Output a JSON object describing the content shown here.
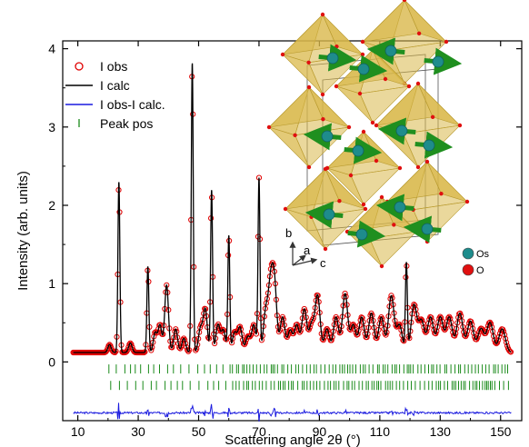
{
  "chart_data": {
    "type": "line",
    "xlabel": "Scattering angle 2θ (°)",
    "ylabel": "Intensity (arb. units)",
    "xlim": [
      5,
      157
    ],
    "ylim": [
      -0.75,
      4.1
    ],
    "x_ticks": [
      10,
      30,
      50,
      70,
      90,
      110,
      130,
      150
    ],
    "y_ticks": [
      0,
      1,
      2,
      3,
      4
    ],
    "grid": false,
    "legend_position": "top-left",
    "legend": [
      "I obs",
      "I calc",
      "I obs-I calc.",
      "Peak pos"
    ],
    "colors": {
      "observed": "#e00000",
      "calculated": "#000000",
      "difference": "#1a1adf",
      "peak_positions": "#1a8a1a"
    },
    "background_level": 0.12,
    "difference_offset": -0.65,
    "peak_rows_y": [
      -0.09,
      -0.3
    ],
    "peaks": [
      {
        "x": 20.5,
        "height": 0.1
      },
      {
        "x": 23.6,
        "height": 2.18
      },
      {
        "x": 27.4,
        "height": 0.12
      },
      {
        "x": 33.2,
        "height": 1.1
      },
      {
        "x": 35.6,
        "height": 0.25
      },
      {
        "x": 37.2,
        "height": 0.35
      },
      {
        "x": 39.4,
        "height": 0.86
      },
      {
        "x": 42.4,
        "height": 0.3
      },
      {
        "x": 45.1,
        "height": 0.18
      },
      {
        "x": 47.9,
        "height": 3.7
      },
      {
        "x": 50.6,
        "height": 0.3
      },
      {
        "x": 52.2,
        "height": 0.55
      },
      {
        "x": 54.3,
        "height": 2.07
      },
      {
        "x": 56.4,
        "height": 0.35
      },
      {
        "x": 58.2,
        "height": 0.28
      },
      {
        "x": 60.0,
        "height": 1.48
      },
      {
        "x": 61.9,
        "height": 0.25
      },
      {
        "x": 63.7,
        "height": 0.32
      },
      {
        "x": 66.3,
        "height": 0.2
      },
      {
        "x": 68.3,
        "height": 0.35
      },
      {
        "x": 70.0,
        "height": 2.2
      },
      {
        "x": 72.2,
        "height": 0.5
      },
      {
        "x": 73.8,
        "height": 0.78
      },
      {
        "x": 75.1,
        "height": 0.85
      },
      {
        "x": 77.8,
        "height": 0.45
      },
      {
        "x": 80.3,
        "height": 0.28
      },
      {
        "x": 82.5,
        "height": 0.35
      },
      {
        "x": 85.0,
        "height": 0.55
      },
      {
        "x": 87.4,
        "height": 0.35
      },
      {
        "x": 89.4,
        "height": 0.72
      },
      {
        "x": 92.5,
        "height": 0.3
      },
      {
        "x": 95.5,
        "height": 0.45
      },
      {
        "x": 98.5,
        "height": 0.75
      },
      {
        "x": 101.2,
        "height": 0.35
      },
      {
        "x": 104.0,
        "height": 0.45
      },
      {
        "x": 107.2,
        "height": 0.5
      },
      {
        "x": 110.5,
        "height": 0.45
      },
      {
        "x": 113.8,
        "height": 0.72
      },
      {
        "x": 116.5,
        "height": 0.35
      },
      {
        "x": 118.8,
        "height": 1.12
      },
      {
        "x": 121.3,
        "height": 0.6
      },
      {
        "x": 123.8,
        "height": 0.4
      },
      {
        "x": 126.8,
        "height": 0.45
      },
      {
        "x": 130.0,
        "height": 0.45
      },
      {
        "x": 133.0,
        "height": 0.45
      },
      {
        "x": 136.5,
        "height": 0.5
      },
      {
        "x": 140.0,
        "height": 0.4
      },
      {
        "x": 143.5,
        "height": 0.3
      },
      {
        "x": 146.5,
        "height": 0.38
      },
      {
        "x": 150.5,
        "height": 0.3
      }
    ]
  },
  "inset": {
    "axis_labels": {
      "b": "b",
      "a": "a",
      "c": "c"
    },
    "atom_legend": [
      {
        "element": "Os",
        "color": "#1e8c8c"
      },
      {
        "element": "O",
        "color": "#e01010"
      }
    ],
    "octahedron_color": "#d9b84a",
    "moment_arrow_color": "#1f8f1f"
  }
}
